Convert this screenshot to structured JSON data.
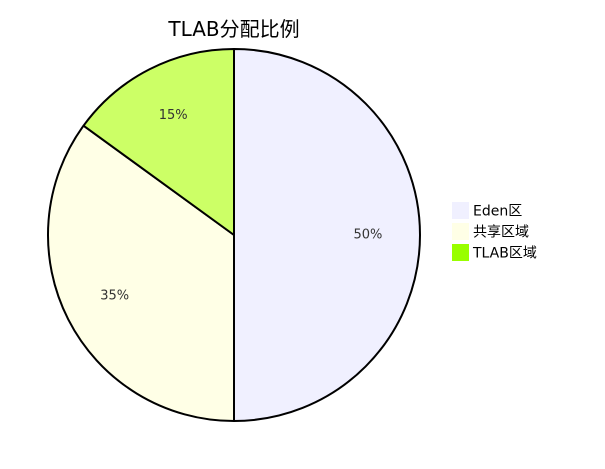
{
  "chart_data": {
    "type": "pie",
    "title": "TLAB分配比例",
    "legend_position": "right",
    "slices": [
      {
        "label": "Eden区",
        "value": 50,
        "display": "50%",
        "color": "#f0f0ff"
      },
      {
        "label": "共享区域",
        "value": 35,
        "display": "35%",
        "color": "#ffffe6"
      },
      {
        "label": "TLAB区域",
        "value": 15,
        "display": "15%",
        "color": "#ccff66"
      }
    ]
  },
  "colors": {
    "slice_stroke": "#000000",
    "legend_tlab": "#99ff00",
    "background": "#ffffff"
  }
}
